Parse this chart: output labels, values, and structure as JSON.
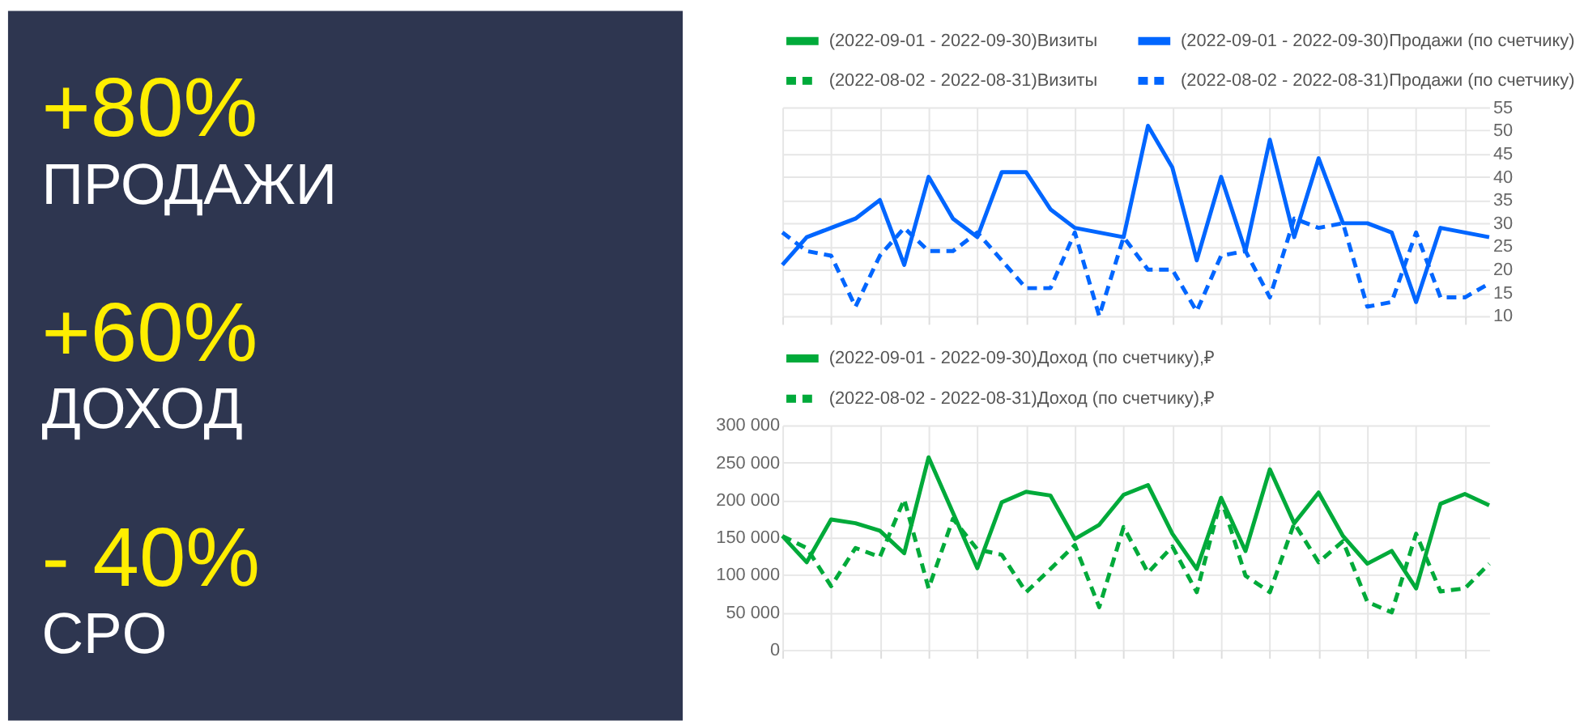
{
  "chart_data": [
    {
      "type": "other",
      "annotations": [
        "+80%",
        "ПРОДАЖИ",
        "+60%",
        "ДОХОД",
        "- 40%",
        "CPO"
      ]
    },
    {
      "type": "line",
      "categories": [
        null,
        null,
        null,
        null,
        null,
        null,
        null,
        null,
        null,
        null,
        null,
        null,
        null,
        null,
        null,
        null,
        null,
        null,
        null,
        null,
        null,
        null,
        null,
        null,
        null,
        null,
        null,
        null,
        null,
        null
      ],
      "series": [
        {
          "name": "(2022-09-01 - 2022-09-30)Визиты",
          "color": "#00aa3a",
          "line_style": "solid",
          "values": [
            null,
            null,
            null,
            null,
            null,
            null,
            null,
            null,
            null,
            null,
            null,
            null,
            null,
            null,
            null,
            null,
            null,
            null,
            null,
            null,
            null,
            null,
            null,
            null,
            null,
            null,
            null,
            null,
            null,
            null
          ]
        },
        {
          "name": "(2022-09-01 - 2022-09-30)Продажи (по счетчику)",
          "color": "#0066ff",
          "line_style": "solid",
          "values": [
            21,
            27,
            29,
            31,
            35,
            21,
            40,
            31,
            27,
            41,
            41,
            33,
            29,
            28,
            27,
            51,
            42,
            22,
            40,
            24,
            48,
            27,
            44,
            30,
            30,
            28,
            13,
            29,
            28,
            27
          ]
        },
        {
          "name": "(2022-08-02 - 2022-08-31)Визиты",
          "color": "#00aa3a",
          "line_style": "dashed",
          "values": [
            null,
            null,
            null,
            null,
            null,
            null,
            null,
            null,
            null,
            null,
            null,
            null,
            null,
            null,
            null,
            null,
            null,
            null,
            null,
            null,
            null,
            null,
            null,
            null,
            null,
            null,
            null,
            null,
            null,
            null
          ]
        },
        {
          "name": "(2022-08-02 - 2022-08-31)Продажи (по счетчику)",
          "color": "#0066ff",
          "line_style": "dashed",
          "values": [
            28,
            24,
            23,
            12,
            23,
            29,
            24,
            24,
            28,
            22,
            16,
            16,
            28,
            10,
            27,
            20,
            20,
            11,
            23,
            24,
            14,
            31,
            29,
            30,
            12,
            13,
            28,
            14,
            14,
            17
          ]
        }
      ],
      "ylim": [
        10,
        55
      ],
      "yticks": [
        10,
        15,
        20,
        25,
        30,
        35,
        40,
        45,
        50,
        55
      ],
      "grid": true,
      "legend": "top",
      "tick_labels": "y"
    },
    {
      "type": "line",
      "categories": [
        null,
        null,
        null,
        null,
        null,
        null,
        null,
        null,
        null,
        null,
        null,
        null,
        null,
        null,
        null,
        null,
        null,
        null,
        null,
        null,
        null,
        null,
        null,
        null,
        null,
        null,
        null,
        null,
        null,
        null
      ],
      "series": [
        {
          "name": "(2022-09-01 - 2022-09-30)Доход (по счетчику),₽",
          "color": "#00aa3a",
          "line_style": "solid",
          "values": [
            152000,
            117000,
            174000,
            169000,
            159000,
            129000,
            257000,
            183000,
            109000,
            197000,
            211000,
            206000,
            148000,
            167000,
            207000,
            220000,
            155000,
            108000,
            203000,
            132000,
            241000,
            169000,
            210000,
            152000,
            115000,
            132000,
            82000,
            195000,
            208000,
            193000
          ]
        },
        {
          "name": "(2022-08-02 - 2022-08-31)Доход (по счетчику),₽",
          "color": "#00aa3a",
          "line_style": "dashed",
          "values": [
            152000,
            136000,
            85000,
            136000,
            124000,
            201000,
            82000,
            175000,
            134000,
            127000,
            77000,
            108000,
            140000,
            57000,
            164000,
            103000,
            138000,
            77000,
            202000,
            99000,
            77000,
            169000,
            117000,
            145000,
            64000,
            50000,
            155000,
            78000,
            82000,
            115000
          ]
        }
      ],
      "ylim": [
        0,
        300000
      ],
      "yticks": [
        {
          "value": 0,
          "label": "0"
        },
        {
          "value": 50000,
          "label": "50 000"
        },
        {
          "value": 100000,
          "label": "100 000"
        },
        {
          "value": 150000,
          "label": "150 000"
        },
        {
          "value": 200000,
          "label": "200 000"
        },
        {
          "value": 250000,
          "label": "250 000"
        },
        {
          "value": 300000,
          "label": "300 000"
        }
      ],
      "grid": true,
      "legend": "top",
      "tick_labels": "y"
    }
  ]
}
